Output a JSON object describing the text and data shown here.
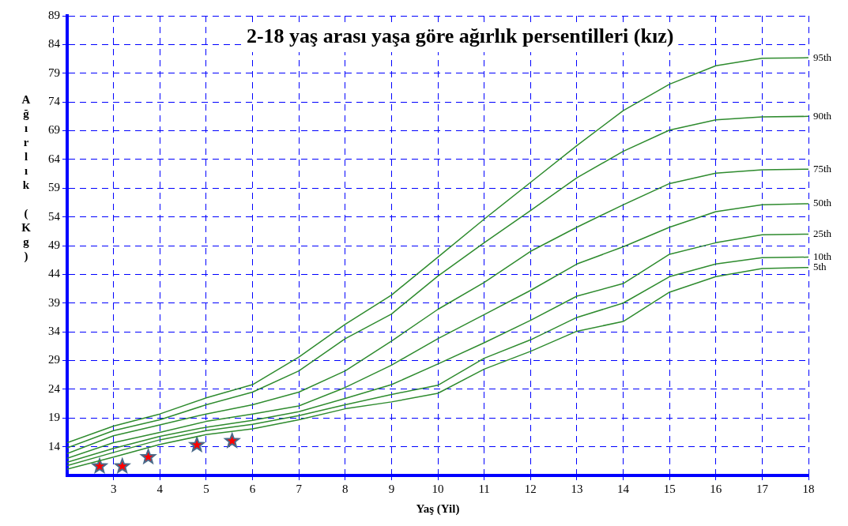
{
  "chart_data": {
    "type": "line",
    "title": "2-18 yaş arası yaşa göre ağırlık persentilleri (kız)",
    "xlabel": "Yaş (Yil)",
    "ylabel": "Ağırlık (Kg)",
    "x": [
      2,
      3,
      4,
      5,
      6,
      7,
      8,
      9,
      10,
      11,
      12,
      13,
      14,
      15,
      16,
      17,
      18
    ],
    "xlim": [
      2,
      18
    ],
    "xticks": [
      3,
      4,
      5,
      6,
      7,
      8,
      9,
      10,
      11,
      12,
      13,
      14,
      15,
      16,
      17,
      18
    ],
    "ylim": [
      9,
      89
    ],
    "yticks": [
      14,
      19,
      24,
      29,
      34,
      39,
      44,
      49,
      54,
      59,
      64,
      69,
      74,
      79,
      84,
      89
    ],
    "grid": true,
    "legend": false,
    "marker": "none",
    "line_style": "solid",
    "series": [
      {
        "name": "95th",
        "color": "#2e8b2e",
        "values": [
          14.7,
          17.6,
          19.7,
          22.5,
          24.8,
          29.6,
          35.3,
          40.4,
          47.0,
          53.6,
          60.0,
          66.4,
          72.5,
          77.1,
          80.3,
          81.6,
          81.7
        ]
      },
      {
        "name": "90th",
        "color": "#2e8b2e",
        "values": [
          13.8,
          16.8,
          18.7,
          21.3,
          23.5,
          27.2,
          32.8,
          37.1,
          43.7,
          49.5,
          55.1,
          60.8,
          65.4,
          69.1,
          70.9,
          71.4,
          71.5
        ]
      },
      {
        "name": "75th",
        "color": "#2e8b2e",
        "values": [
          12.8,
          15.9,
          17.8,
          19.7,
          21.3,
          23.5,
          27.2,
          32.4,
          37.9,
          42.6,
          48.0,
          52.2,
          56.1,
          59.8,
          61.6,
          62.2,
          62.3
        ]
      },
      {
        "name": "50th",
        "color": "#2e8b2e",
        "values": [
          12.0,
          14.7,
          16.5,
          18.4,
          19.7,
          21.1,
          24.3,
          28.2,
          32.8,
          37.0,
          41.2,
          45.8,
          48.8,
          52.2,
          54.9,
          56.1,
          56.3
        ]
      },
      {
        "name": "25th",
        "color": "#2e8b2e",
        "values": [
          11.3,
          13.7,
          15.8,
          17.4,
          18.6,
          20.1,
          22.4,
          24.8,
          28.4,
          32.1,
          36.0,
          40.2,
          42.4,
          47.5,
          49.5,
          50.9,
          51.0
        ]
      },
      {
        "name": "10th",
        "color": "#2e8b2e",
        "values": [
          10.7,
          13.0,
          15.2,
          16.8,
          17.9,
          19.4,
          21.3,
          23.1,
          24.7,
          29.4,
          32.6,
          36.5,
          39.0,
          43.6,
          45.8,
          46.9,
          47.0
        ]
      },
      {
        "name": "5th",
        "color": "#2e8b2e",
        "values": [
          10.1,
          12.2,
          14.4,
          16.1,
          17.1,
          18.7,
          20.6,
          21.8,
          23.3,
          27.5,
          30.6,
          34.1,
          35.8,
          40.9,
          43.6,
          45.0,
          45.2
        ]
      },
      {
        "type": "scatter",
        "marker": "star",
        "color": "#ff0000",
        "x": [
          2.7,
          3.19,
          3.75,
          4.8,
          5.56
        ],
        "values": [
          10.6,
          10.6,
          12.2,
          14.3,
          15.0
        ]
      }
    ]
  }
}
